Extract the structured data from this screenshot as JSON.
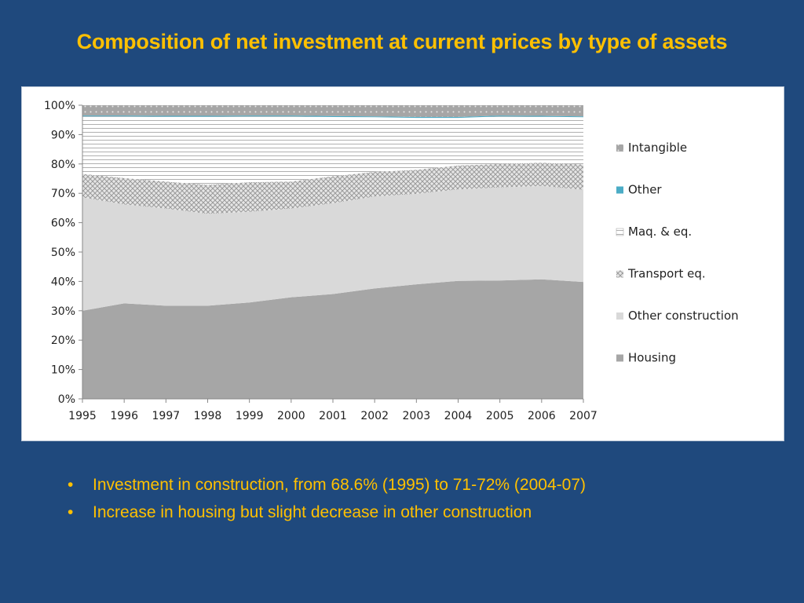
{
  "title": "Composition of net investment at current prices by type of assets",
  "bullets": [
    "Investment in construction, from 68.6% (1995) to 71-72% (2004-07)",
    "Increase in housing but slight decrease in other construction"
  ],
  "bullet_symbol": "•",
  "chart_data": {
    "type": "area",
    "stacked": true,
    "percent": true,
    "title": "",
    "xlabel": "",
    "ylabel": "",
    "ylim": [
      0,
      100
    ],
    "yticks": [
      "0%",
      "10%",
      "20%",
      "30%",
      "40%",
      "50%",
      "60%",
      "70%",
      "80%",
      "90%",
      "100%"
    ],
    "x": [
      "1995",
      "1996",
      "1997",
      "1998",
      "1999",
      "2000",
      "2001",
      "2002",
      "2003",
      "2004",
      "2005",
      "2006",
      "2007"
    ],
    "legend_position": "right",
    "grid": false,
    "series": [
      {
        "name": "Housing",
        "color": "#a6a6a6",
        "pattern": "solid",
        "values": [
          30.0,
          32.5,
          31.7,
          31.7,
          32.8,
          34.6,
          35.7,
          37.6,
          39.0,
          40.2,
          40.3,
          40.7,
          39.8
        ]
      },
      {
        "name": "Other construction",
        "color": "#d9d9d9",
        "pattern": "solid",
        "values": [
          38.6,
          33.7,
          33.1,
          31.3,
          30.9,
          30.2,
          30.9,
          31.3,
          30.8,
          31.1,
          31.7,
          31.8,
          31.4
        ]
      },
      {
        "name": "Transport eq.",
        "color": "#bfbfbf",
        "pattern": "crosshatch",
        "values": [
          8.0,
          9.0,
          9.2,
          9.9,
          10.1,
          9.2,
          9.2,
          8.4,
          8.2,
          8.2,
          8.0,
          7.9,
          8.6
        ]
      },
      {
        "name": "Maq. & eq.",
        "color": "#ffffff",
        "pattern": "horizontal-lines",
        "values": [
          19.6,
          21.0,
          22.1,
          23.2,
          22.4,
          22.2,
          20.2,
          18.6,
          17.7,
          16.2,
          16.2,
          15.7,
          16.1
        ]
      },
      {
        "name": "Other",
        "color": "#4bacc6",
        "pattern": "solid",
        "values": [
          0.3,
          0.3,
          0.3,
          0.3,
          0.3,
          0.3,
          0.3,
          0.3,
          0.3,
          0.3,
          0.3,
          0.3,
          0.3
        ]
      },
      {
        "name": "Intangible",
        "color": "#a6a6a6",
        "pattern": "dots",
        "values": [
          3.5,
          3.5,
          3.6,
          3.6,
          3.5,
          3.5,
          3.7,
          3.8,
          4.0,
          4.0,
          3.5,
          3.6,
          3.8
        ]
      }
    ],
    "legend_order": [
      "Intangible",
      "Other",
      "Maq. & eq.",
      "Transport eq.",
      "Other construction",
      "Housing"
    ]
  }
}
